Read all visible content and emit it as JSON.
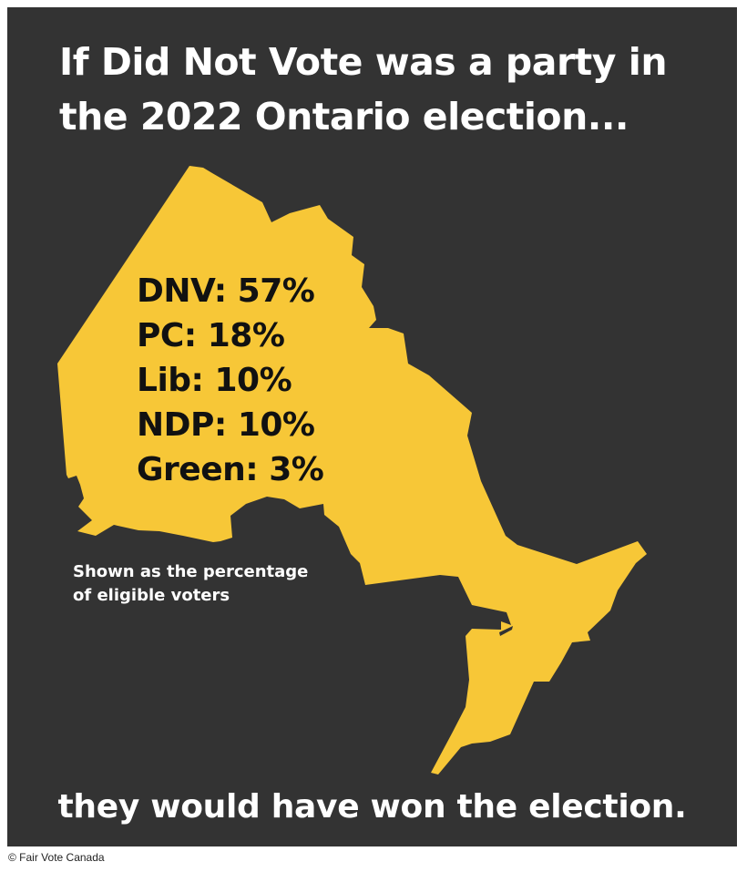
{
  "colors": {
    "panel_background": "#333333",
    "map_fill": "#F7C737",
    "headline_text": "#FFFFFF",
    "stats_text": "#111111"
  },
  "headline": {
    "line1": "If Did Not Vote was a party in",
    "line2": "the 2022 Ontario election..."
  },
  "map": {
    "icon": "ontario-map-icon"
  },
  "results": [
    {
      "label": "DNV: 57%",
      "party": "DNV",
      "percent": 57
    },
    {
      "label": "PC: 18%",
      "party": "PC",
      "percent": 18
    },
    {
      "label": "Lib: 10%",
      "party": "Lib",
      "percent": 10
    },
    {
      "label": "NDP: 10%",
      "party": "NDP",
      "percent": 10
    },
    {
      "label": "Green: 3%",
      "party": "Green",
      "percent": 3
    }
  ],
  "note": {
    "line1": "Shown as the percentage",
    "line2": "of eligible voters"
  },
  "conclusion": "they would have won the election.",
  "credit": "© Fair Vote Canada"
}
